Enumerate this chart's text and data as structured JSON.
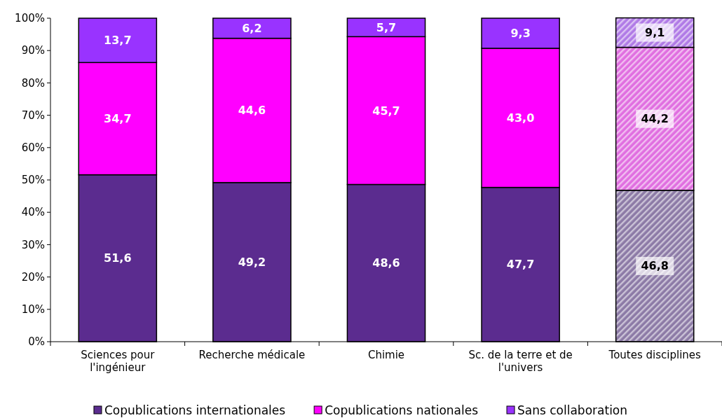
{
  "chart_data": {
    "type": "bar",
    "stacked": true,
    "categories": [
      "Sciences pour l'ingénieur",
      "Recherche médicale",
      "Chimie",
      "Sc. de la terre et de l'univers",
      "Toutes disciplines"
    ],
    "series": [
      {
        "name": "Copublications internationales",
        "color": "#5b2c8f",
        "colors": [
          "#5b2c8f",
          "#5b2c8f",
          "#5b2c8f",
          "#5b2c8f",
          "#8c7aa6"
        ],
        "values": [
          51.6,
          49.2,
          48.6,
          47.7,
          46.8
        ],
        "value_labels": [
          "51,6",
          "49,2",
          "48,6",
          "47,7",
          "46,8"
        ]
      },
      {
        "name": "Copublications nationales",
        "color": "#ff00ff",
        "colors": [
          "#ff00ff",
          "#ff00ff",
          "#ff00ff",
          "#ff00ff",
          "#e06ee0"
        ],
        "values": [
          34.7,
          44.6,
          45.7,
          43.0,
          44.2
        ],
        "value_labels": [
          "34,7",
          "44,6",
          "45,7",
          "43,0",
          "44,2"
        ]
      },
      {
        "name": "Sans collaboration",
        "color": "#9933ff",
        "colors": [
          "#9933ff",
          "#9933ff",
          "#9933ff",
          "#9933ff",
          "#b07ae6"
        ],
        "values": [
          13.7,
          6.2,
          5.7,
          9.3,
          9.1
        ],
        "value_labels": [
          "13,7",
          "6,2",
          "5,7",
          "9,3",
          "9,1"
        ]
      }
    ],
    "ylim": [
      0,
      100
    ],
    "yticks": [
      {
        "value": 0,
        "label": "0%"
      },
      {
        "value": 10,
        "label": "10%"
      },
      {
        "value": 20,
        "label": "20%"
      },
      {
        "value": 30,
        "label": "30%"
      },
      {
        "value": 40,
        "label": "40%"
      },
      {
        "value": 50,
        "label": "50%"
      },
      {
        "value": 60,
        "label": "60%"
      },
      {
        "value": 70,
        "label": "70%"
      },
      {
        "value": 80,
        "label": "80%"
      },
      {
        "value": 90,
        "label": "90%"
      },
      {
        "value": 100,
        "label": "100%"
      }
    ],
    "legend": "bottom",
    "grid": false
  }
}
